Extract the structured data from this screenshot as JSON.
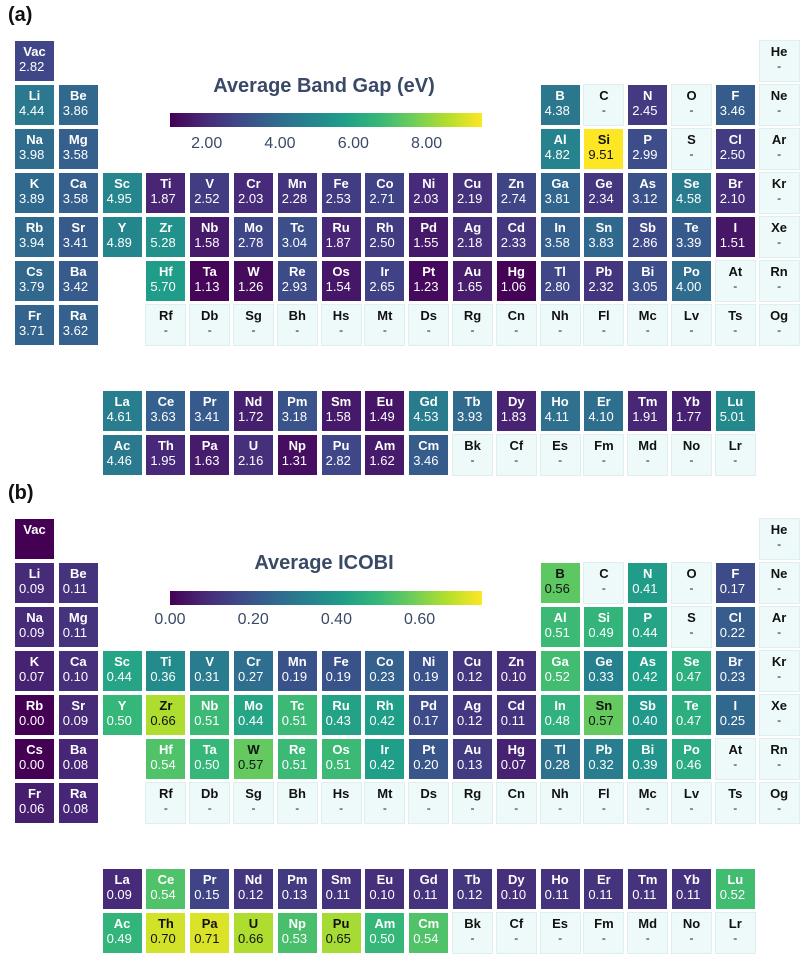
{
  "panels": [
    {
      "label": "(a)",
      "colorbar": {
        "title": "Average Band Gap (eV)",
        "ticks": [
          "2.00",
          "4.00",
          "6.00",
          "8.00"
        ]
      },
      "chart_data": {
        "type": "heatmap",
        "title": "Average Band Gap (eV)",
        "colormap": "viridis",
        "vmin": 1.0,
        "vmax": 9.51,
        "colorbar_ticks": [
          2.0,
          4.0,
          6.0,
          8.0
        ],
        "missing_value_label": "-",
        "values": {
          "Vac": 2.82,
          "Li": 4.44,
          "Be": 3.86,
          "B": 4.38,
          "N": 2.45,
          "F": 3.46,
          "Na": 3.98,
          "Mg": 3.58,
          "Al": 4.82,
          "Si": 9.51,
          "P": 2.99,
          "Cl": 2.5,
          "K": 3.89,
          "Ca": 3.58,
          "Sc": 4.95,
          "Ti": 1.87,
          "V": 2.52,
          "Cr": 2.03,
          "Mn": 2.28,
          "Fe": 2.53,
          "Co": 2.71,
          "Ni": 2.03,
          "Cu": 2.19,
          "Zn": 2.74,
          "Ga": 3.81,
          "Ge": 2.34,
          "As": 3.12,
          "Se": 4.58,
          "Br": 2.1,
          "Rb": 3.94,
          "Sr": 3.41,
          "Y": 4.89,
          "Zr": 5.28,
          "Nb": 1.58,
          "Mo": 2.78,
          "Tc": 3.04,
          "Ru": 1.87,
          "Rh": 2.5,
          "Pd": 1.55,
          "Ag": 2.18,
          "Cd": 2.33,
          "In": 3.58,
          "Sn": 3.83,
          "Sb": 2.86,
          "Te": 3.39,
          "I": 1.51,
          "Cs": 3.79,
          "Ba": 3.42,
          "Hf": 5.7,
          "Ta": 1.13,
          "W": 1.26,
          "Re": 2.93,
          "Os": 1.54,
          "Ir": 2.65,
          "Pt": 1.23,
          "Au": 1.65,
          "Hg": 1.06,
          "Tl": 2.8,
          "Pb": 2.32,
          "Bi": 3.05,
          "Po": 4.0,
          "Fr": 3.71,
          "Ra": 3.62,
          "La": 4.61,
          "Ce": 3.63,
          "Pr": 3.41,
          "Nd": 1.72,
          "Pm": 3.18,
          "Sm": 1.58,
          "Eu": 1.49,
          "Gd": 4.53,
          "Tb": 3.93,
          "Dy": 1.83,
          "Ho": 4.11,
          "Er": 4.1,
          "Tm": 1.91,
          "Yb": 1.77,
          "Lu": 5.01,
          "Ac": 4.46,
          "Th": 1.95,
          "Pa": 1.63,
          "U": 2.16,
          "Np": 1.31,
          "Pu": 2.82,
          "Am": 1.62,
          "Cm": 3.46
        }
      }
    },
    {
      "label": "(b)",
      "colorbar": {
        "title": "Average ICOBI",
        "ticks": [
          "0.00",
          "0.20",
          "0.40",
          "0.60"
        ]
      },
      "chart_data": {
        "type": "heatmap",
        "title": "Average ICOBI",
        "colormap": "viridis",
        "vmin": 0.0,
        "vmax": 0.75,
        "colorbar_ticks": [
          0.0,
          0.2,
          0.4,
          0.6
        ],
        "missing_value_label": "-",
        "values": {
          "Vac": null,
          "Li": 0.09,
          "Be": 0.11,
          "B": 0.56,
          "N": 0.41,
          "F": 0.17,
          "Na": 0.09,
          "Mg": 0.11,
          "Al": 0.51,
          "Si": 0.49,
          "P": 0.44,
          "Cl": 0.22,
          "K": 0.07,
          "Ca": 0.1,
          "Sc": 0.44,
          "Ti": 0.36,
          "V": 0.31,
          "Cr": 0.27,
          "Mn": 0.19,
          "Fe": 0.19,
          "Co": 0.23,
          "Ni": 0.19,
          "Cu": 0.12,
          "Zn": 0.1,
          "Ga": 0.52,
          "Ge": 0.33,
          "As": 0.42,
          "Se": 0.47,
          "Br": 0.23,
          "Rb": 0.0,
          "Sr": 0.09,
          "Y": 0.5,
          "Zr": 0.66,
          "Nb": 0.51,
          "Mo": 0.44,
          "Tc": 0.51,
          "Ru": 0.43,
          "Rh": 0.42,
          "Pd": 0.17,
          "Ag": 0.12,
          "Cd": 0.11,
          "In": 0.48,
          "Sn": 0.57,
          "Sb": 0.4,
          "Te": 0.47,
          "I": 0.25,
          "Cs": 0.0,
          "Ba": 0.08,
          "Hf": 0.54,
          "Ta": 0.5,
          "W": 0.57,
          "Re": 0.51,
          "Os": 0.51,
          "Ir": 0.42,
          "Pt": 0.2,
          "Au": 0.13,
          "Hg": 0.07,
          "Tl": 0.28,
          "Pb": 0.32,
          "Bi": 0.39,
          "Po": 0.46,
          "Fr": 0.06,
          "Ra": 0.08,
          "La": 0.09,
          "Ce": 0.54,
          "Pr": 0.15,
          "Nd": 0.12,
          "Pm": 0.13,
          "Sm": 0.11,
          "Eu": 0.1,
          "Gd": 0.11,
          "Tb": 0.12,
          "Dy": 0.1,
          "Ho": 0.11,
          "Er": 0.11,
          "Tm": 0.11,
          "Yb": 0.11,
          "Lu": 0.52,
          "Ac": 0.49,
          "Th": 0.7,
          "Pa": 0.71,
          "U": 0.66,
          "Np": 0.53,
          "Pu": 0.65,
          "Am": 0.5,
          "Cm": 0.54
        }
      }
    }
  ],
  "elements": [
    [
      "Vac",
      1,
      1
    ],
    [
      "He",
      1,
      18
    ],
    [
      "Li",
      2,
      1
    ],
    [
      "Be",
      2,
      2
    ],
    [
      "B",
      2,
      13
    ],
    [
      "C",
      2,
      14
    ],
    [
      "N",
      2,
      15
    ],
    [
      "O",
      2,
      16
    ],
    [
      "F",
      2,
      17
    ],
    [
      "Ne",
      2,
      18
    ],
    [
      "Na",
      3,
      1
    ],
    [
      "Mg",
      3,
      2
    ],
    [
      "Al",
      3,
      13
    ],
    [
      "Si",
      3,
      14
    ],
    [
      "P",
      3,
      15
    ],
    [
      "S",
      3,
      16
    ],
    [
      "Cl",
      3,
      17
    ],
    [
      "Ar",
      3,
      18
    ],
    [
      "K",
      4,
      1
    ],
    [
      "Ca",
      4,
      2
    ],
    [
      "Sc",
      4,
      3
    ],
    [
      "Ti",
      4,
      4
    ],
    [
      "V",
      4,
      5
    ],
    [
      "Cr",
      4,
      6
    ],
    [
      "Mn",
      4,
      7
    ],
    [
      "Fe",
      4,
      8
    ],
    [
      "Co",
      4,
      9
    ],
    [
      "Ni",
      4,
      10
    ],
    [
      "Cu",
      4,
      11
    ],
    [
      "Zn",
      4,
      12
    ],
    [
      "Ga",
      4,
      13
    ],
    [
      "Ge",
      4,
      14
    ],
    [
      "As",
      4,
      15
    ],
    [
      "Se",
      4,
      16
    ],
    [
      "Br",
      4,
      17
    ],
    [
      "Kr",
      4,
      18
    ],
    [
      "Rb",
      5,
      1
    ],
    [
      "Sr",
      5,
      2
    ],
    [
      "Y",
      5,
      3
    ],
    [
      "Zr",
      5,
      4
    ],
    [
      "Nb",
      5,
      5
    ],
    [
      "Mo",
      5,
      6
    ],
    [
      "Tc",
      5,
      7
    ],
    [
      "Ru",
      5,
      8
    ],
    [
      "Rh",
      5,
      9
    ],
    [
      "Pd",
      5,
      10
    ],
    [
      "Ag",
      5,
      11
    ],
    [
      "Cd",
      5,
      12
    ],
    [
      "In",
      5,
      13
    ],
    [
      "Sn",
      5,
      14
    ],
    [
      "Sb",
      5,
      15
    ],
    [
      "Te",
      5,
      16
    ],
    [
      "I",
      5,
      17
    ],
    [
      "Xe",
      5,
      18
    ],
    [
      "Cs",
      6,
      1
    ],
    [
      "Ba",
      6,
      2
    ],
    [
      "Hf",
      6,
      4
    ],
    [
      "Ta",
      6,
      5
    ],
    [
      "W",
      6,
      6
    ],
    [
      "Re",
      6,
      7
    ],
    [
      "Os",
      6,
      8
    ],
    [
      "Ir",
      6,
      9
    ],
    [
      "Pt",
      6,
      10
    ],
    [
      "Au",
      6,
      11
    ],
    [
      "Hg",
      6,
      12
    ],
    [
      "Tl",
      6,
      13
    ],
    [
      "Pb",
      6,
      14
    ],
    [
      "Bi",
      6,
      15
    ],
    [
      "Po",
      6,
      16
    ],
    [
      "At",
      6,
      17
    ],
    [
      "Rn",
      6,
      18
    ],
    [
      "Fr",
      7,
      1
    ],
    [
      "Ra",
      7,
      2
    ],
    [
      "Rf",
      7,
      4
    ],
    [
      "Db",
      7,
      5
    ],
    [
      "Sg",
      7,
      6
    ],
    [
      "Bh",
      7,
      7
    ],
    [
      "Hs",
      7,
      8
    ],
    [
      "Mt",
      7,
      9
    ],
    [
      "Ds",
      7,
      10
    ],
    [
      "Rg",
      7,
      11
    ],
    [
      "Cn",
      7,
      12
    ],
    [
      "Nh",
      7,
      13
    ],
    [
      "Fl",
      7,
      14
    ],
    [
      "Mc",
      7,
      15
    ],
    [
      "Lv",
      7,
      16
    ],
    [
      "Ts",
      7,
      17
    ],
    [
      "Og",
      7,
      18
    ],
    [
      "La",
      9,
      3
    ],
    [
      "Ce",
      9,
      4
    ],
    [
      "Pr",
      9,
      5
    ],
    [
      "Nd",
      9,
      6
    ],
    [
      "Pm",
      9,
      7
    ],
    [
      "Sm",
      9,
      8
    ],
    [
      "Eu",
      9,
      9
    ],
    [
      "Gd",
      9,
      10
    ],
    [
      "Tb",
      9,
      11
    ],
    [
      "Dy",
      9,
      12
    ],
    [
      "Ho",
      9,
      13
    ],
    [
      "Er",
      9,
      14
    ],
    [
      "Tm",
      9,
      15
    ],
    [
      "Yb",
      9,
      16
    ],
    [
      "Lu",
      9,
      17
    ],
    [
      "Ac",
      10,
      3
    ],
    [
      "Th",
      10,
      4
    ],
    [
      "Pa",
      10,
      5
    ],
    [
      "U",
      10,
      6
    ],
    [
      "Np",
      10,
      7
    ],
    [
      "Pu",
      10,
      8
    ],
    [
      "Am",
      10,
      9
    ],
    [
      "Cm",
      10,
      10
    ],
    [
      "Bk",
      10,
      11
    ],
    [
      "Cf",
      10,
      12
    ],
    [
      "Es",
      10,
      13
    ],
    [
      "Fm",
      10,
      14
    ],
    [
      "Md",
      10,
      15
    ],
    [
      "No",
      10,
      16
    ],
    [
      "Lr",
      10,
      17
    ]
  ]
}
